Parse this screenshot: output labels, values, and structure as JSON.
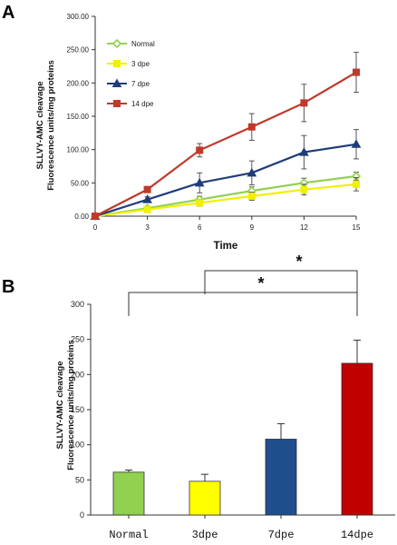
{
  "chart_data": [
    {
      "panel": "A",
      "type": "line",
      "xlabel": "Time",
      "ylabel_line1": "SLLVY-AMC cleavage",
      "ylabel_line2": "Fluorescence units/mg proteins",
      "x": [
        0,
        3,
        6,
        9,
        12,
        15
      ],
      "x_ticks": [
        "0",
        "3",
        "6",
        "9",
        "12",
        "15"
      ],
      "xlim": [
        0,
        15
      ],
      "ylim": [
        0,
        300
      ],
      "y_ticks": [
        "0.00",
        "50.00",
        "100.00",
        "150.00",
        "200.00",
        "250.00",
        "300.00"
      ],
      "grid": false,
      "legend_position": "top-left",
      "series": [
        {
          "name": "Normal",
          "color": "#92d050",
          "marker": "diamond",
          "values": [
            0,
            12,
            25,
            38,
            50,
            60
          ],
          "errors": [
            0,
            3,
            5,
            6,
            7,
            6
          ]
        },
        {
          "name": "3 dpe",
          "color": "#f0f000",
          "marker": "square",
          "values": [
            0,
            10,
            20,
            30,
            40,
            48
          ],
          "errors": [
            0,
            3,
            5,
            6,
            8,
            10
          ]
        },
        {
          "name": "7 dpe",
          "color": "#1f3d7a",
          "marker": "triangle",
          "values": [
            0,
            25,
            50,
            65,
            96,
            108
          ],
          "errors": [
            0,
            4,
            15,
            18,
            25,
            22
          ]
        },
        {
          "name": "14 dpe",
          "color": "#c0392b",
          "marker": "square",
          "values": [
            0,
            40,
            99,
            134,
            170,
            216
          ],
          "errors": [
            0,
            4,
            10,
            20,
            28,
            30
          ]
        }
      ]
    },
    {
      "panel": "B",
      "type": "bar",
      "ylabel_line1": "SLLVY-AMC cleavage",
      "ylabel_line2": "Fluorescence units/mg proteins",
      "categories": [
        "Normal",
        "3dpe",
        "7dpe",
        "14dpe"
      ],
      "values": [
        61,
        48,
        108,
        216
      ],
      "errors": [
        3,
        10,
        22,
        33
      ],
      "colors": [
        "#92d050",
        "#ffff00",
        "#1f4e8c",
        "#c00000"
      ],
      "ylim": [
        0,
        300
      ],
      "y_ticks": [
        "0",
        "50",
        "100",
        "150",
        "200",
        "250",
        "300"
      ],
      "grid": false,
      "significance": [
        {
          "from": 0,
          "to": 3,
          "label": "*"
        },
        {
          "from": 1,
          "to": 3,
          "label": "*"
        }
      ]
    }
  ]
}
